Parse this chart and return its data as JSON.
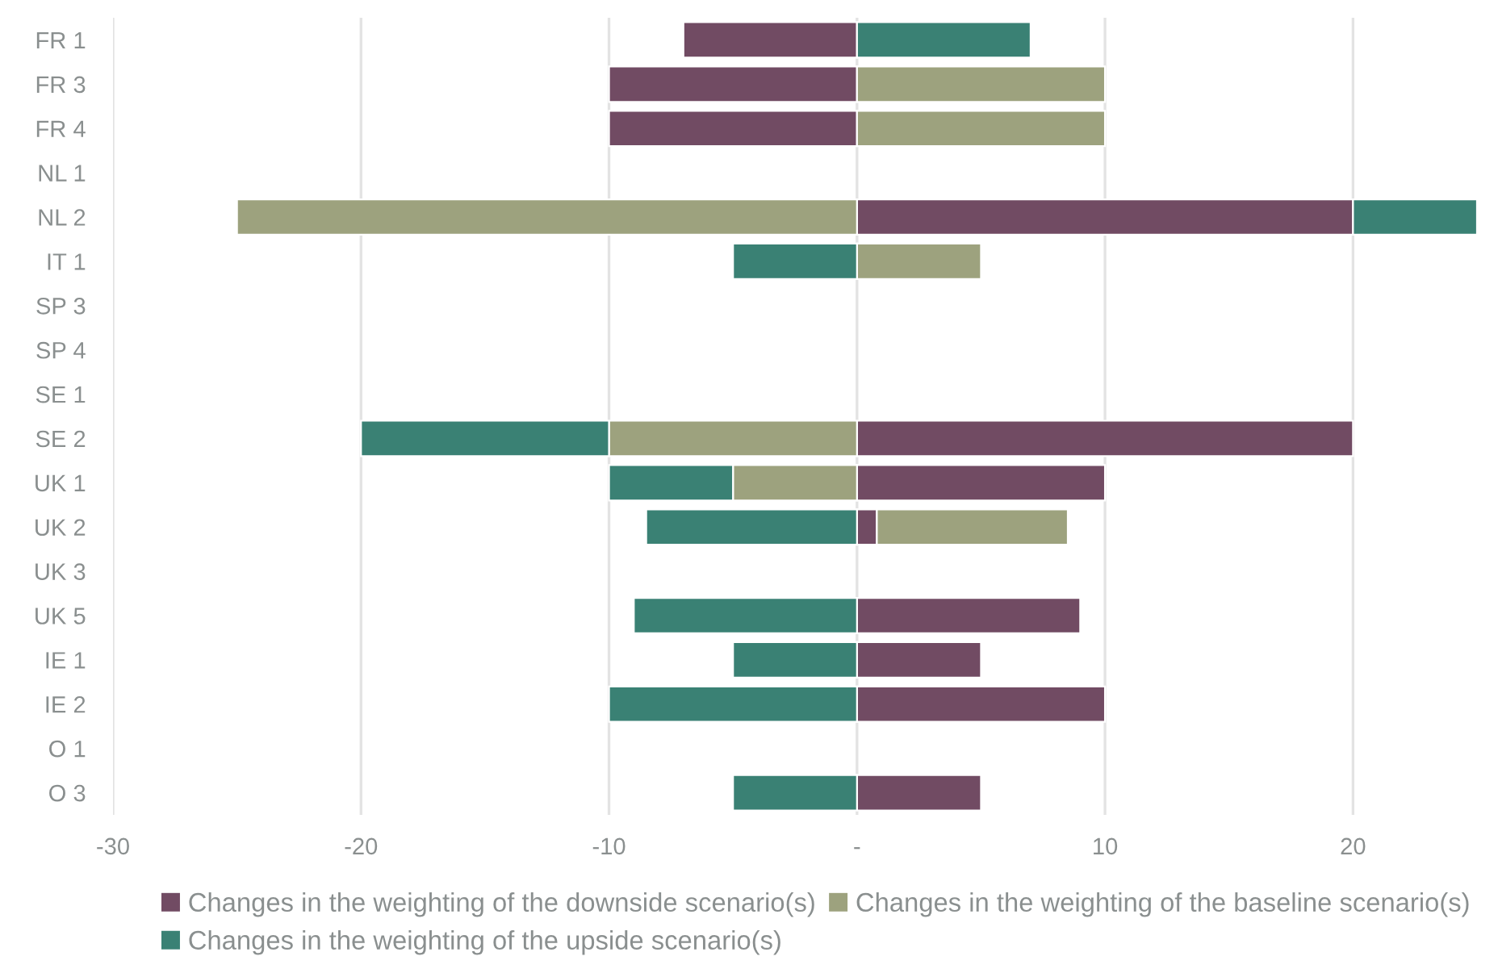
{
  "chart_data": {
    "type": "bar",
    "orientation": "horizontal",
    "stacked": true,
    "categories": [
      "FR 1",
      "FR 3",
      "FR 4",
      "NL 1",
      "NL 2",
      "IT 1",
      "SP 3",
      "SP 4",
      "SE 1",
      "SE 2",
      "UK 1",
      "UK 2",
      "UK 3",
      "UK 5",
      "IE 1",
      "IE 2",
      "O 1",
      "O 3"
    ],
    "series": [
      {
        "name": "Changes in the weighting of the downside scenario(s)",
        "color": "#714b63",
        "values": [
          -7,
          -10,
          -10,
          null,
          20,
          null,
          null,
          null,
          null,
          20,
          10,
          0.8,
          null,
          9,
          5,
          10,
          null,
          5
        ]
      },
      {
        "name": "Changes in the weighting of the baseline scenario(s)",
        "color": "#9da27e",
        "values": [
          null,
          10,
          10,
          null,
          -25,
          5,
          null,
          null,
          null,
          -10,
          -5,
          7.7,
          null,
          null,
          null,
          null,
          null,
          null
        ]
      },
      {
        "name": "Changes in the weighting of the upside scenario(s)",
        "color": "#3a8174",
        "values": [
          7,
          null,
          null,
          null,
          5,
          -5,
          null,
          null,
          null,
          -10,
          -5,
          -8.5,
          null,
          -9,
          -5,
          -10,
          null,
          -5
        ]
      }
    ],
    "xlim": [
      -30,
      25
    ],
    "xticks": [
      -30,
      -20,
      -10,
      {
        "value": 0,
        "label": "-"
      },
      10,
      20
    ],
    "grid": "x",
    "legend": "bottom"
  }
}
